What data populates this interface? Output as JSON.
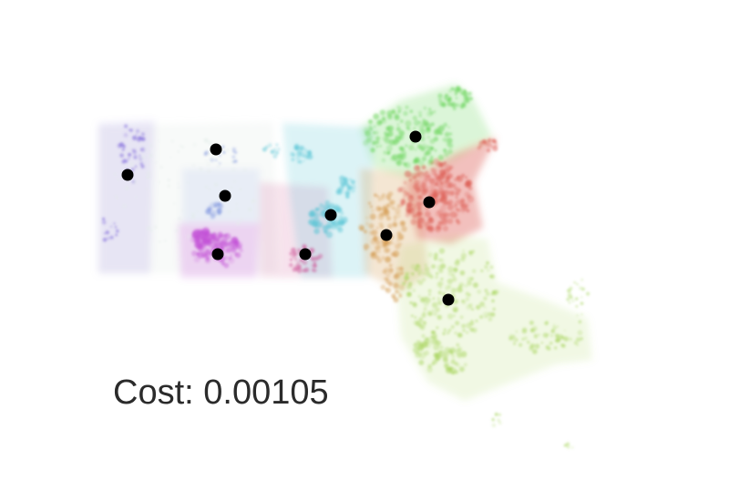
{
  "figure": {
    "cost_prefix": "Cost: ",
    "cost_value": "0.00105",
    "centroid_color": "#000000"
  },
  "clusters": [
    {
      "id": "northwest",
      "color": "#e2ebe8"
    },
    {
      "id": "berkshire-north",
      "color": "#6a4fd6"
    },
    {
      "id": "springfield",
      "color": "#c24fd6"
    },
    {
      "id": "west-central",
      "color": "#5c78d6"
    },
    {
      "id": "worcester-west",
      "color": "#cc4a90"
    },
    {
      "id": "worcester",
      "color": "#4fc2d3"
    },
    {
      "id": "metrowest",
      "color": "#d49a4f"
    },
    {
      "id": "northeast",
      "color": "#5fd14f"
    },
    {
      "id": "boston",
      "color": "#dc5a50"
    },
    {
      "id": "southeast",
      "color": "#a6d45a"
    }
  ]
}
